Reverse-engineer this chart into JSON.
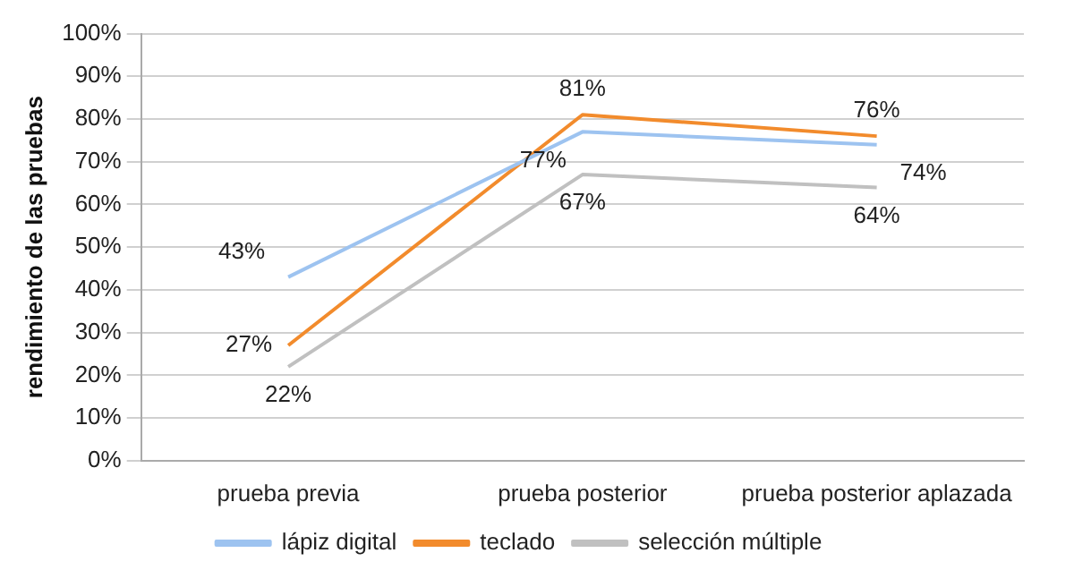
{
  "chart_data": {
    "type": "line",
    "ylabel": "rendimiento de las pruebas",
    "categories": [
      "prueba previa",
      "prueba posterior",
      "prueba posterior aplazada"
    ],
    "series": [
      {
        "name": "lápiz digital",
        "color": "#9dc3f0",
        "values": [
          43,
          77,
          74
        ],
        "value_labels": [
          "43%",
          "77%",
          "74%"
        ]
      },
      {
        "name": "teclado",
        "color": "#f28b2c",
        "values": [
          27,
          81,
          76
        ],
        "value_labels": [
          "27%",
          "81%",
          "76%"
        ]
      },
      {
        "name": "selección múltiple",
        "color": "#c0c0c0",
        "values": [
          22,
          67,
          64
        ],
        "value_labels": [
          "22%",
          "67%",
          "64%"
        ]
      }
    ],
    "ylim": [
      0,
      100
    ],
    "yticks": [
      {
        "value": 0,
        "label": "0%"
      },
      {
        "value": 10,
        "label": "10%"
      },
      {
        "value": 20,
        "label": "20%"
      },
      {
        "value": 30,
        "label": "30%"
      },
      {
        "value": 40,
        "label": "40%"
      },
      {
        "value": 50,
        "label": "50%"
      },
      {
        "value": 60,
        "label": "60%"
      },
      {
        "value": 70,
        "label": "70%"
      },
      {
        "value": 80,
        "label": "80%"
      },
      {
        "value": 90,
        "label": "90%"
      },
      {
        "value": 100,
        "label": "100%"
      }
    ],
    "grid": "y",
    "legend": "bottom",
    "marker": "none",
    "line_style": "solid"
  }
}
